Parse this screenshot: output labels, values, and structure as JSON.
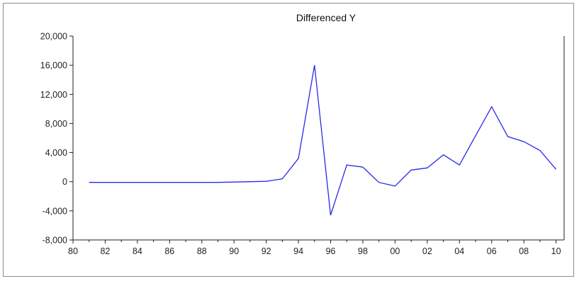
{
  "chart_data": {
    "type": "line",
    "title": "Differenced Y",
    "xlabel": "",
    "ylabel": "",
    "xlim": [
      1980,
      2010.5
    ],
    "ylim": [
      -8000,
      20000
    ],
    "grid": false,
    "legend": "none",
    "x_tick_labels": [
      "80",
      "82",
      "84",
      "86",
      "88",
      "90",
      "92",
      "94",
      "96",
      "98",
      "00",
      "02",
      "04",
      "06",
      "08",
      "10"
    ],
    "y_tick_labels": [
      "20,000",
      "16,000",
      "12,000",
      "8,000",
      "4,000",
      "0",
      "-4,000",
      "-8,000"
    ],
    "y_ticks": [
      20000,
      16000,
      12000,
      8000,
      4000,
      0,
      -4000,
      -8000
    ],
    "series": [
      {
        "color": "#2a2ae6",
        "x": [
          1981,
          1982,
          1983,
          1984,
          1985,
          1986,
          1987,
          1988,
          1989,
          1990,
          1991,
          1992,
          1993,
          1994,
          1995,
          1996,
          1997,
          1998,
          1999,
          2000,
          2001,
          2002,
          2003,
          2004,
          2005,
          2006,
          2007,
          2008,
          2009,
          2010
        ],
        "y": [
          -100,
          -100,
          -100,
          -100,
          -100,
          -100,
          -100,
          -100,
          -100,
          -50,
          0,
          50,
          400,
          3200,
          16000,
          -4600,
          2300,
          2000,
          -100,
          -600,
          1600,
          1900,
          3700,
          2300,
          6300,
          10300,
          6200,
          5500,
          4300,
          1700
        ]
      }
    ]
  }
}
